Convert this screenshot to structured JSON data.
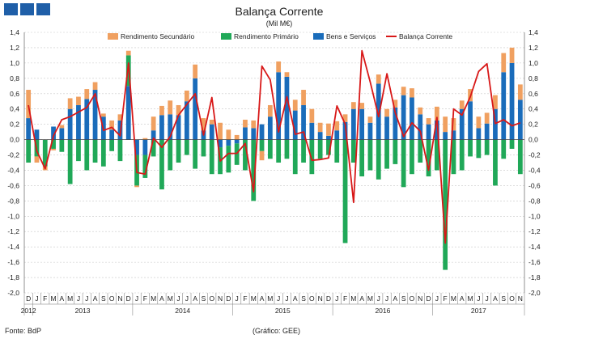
{
  "header_blocks": 3,
  "colors": {
    "header_block": "#1f5fa8",
    "rendimento_secundario": "#f0a060",
    "rendimento_primario": "#20a858",
    "bens_servicos": "#1a6cba",
    "balanca_corrente": "#d81818",
    "grid": "#c8c8c8",
    "axis": "#777777",
    "text": "#222222"
  },
  "chart_data": {
    "type": "bar",
    "title": "Balança Corrente",
    "subtitle": "(Mil M€)",
    "source": "Fonte: BdP",
    "credit": "(Gráfico: GEE)",
    "ylim": [
      -2.0,
      1.4
    ],
    "yticks": [
      "1,4",
      "1,2",
      "1,0",
      "0,8",
      "0,6",
      "0,4",
      "0,2",
      "0,0",
      "-0,2",
      "-0,4",
      "-0,6",
      "-0,8",
      "-1,0",
      "-1,2",
      "-1,4",
      "-1,6",
      "-1,8",
      "-2,0"
    ],
    "grid": true,
    "stacked": true,
    "legend_position": "top",
    "categories": [
      "D",
      "J",
      "F",
      "M",
      "A",
      "M",
      "J",
      "J",
      "A",
      "S",
      "O",
      "N",
      "D",
      "J",
      "F",
      "M",
      "A",
      "M",
      "J",
      "J",
      "A",
      "S",
      "O",
      "N",
      "D",
      "J",
      "F",
      "M",
      "A",
      "M",
      "J",
      "J",
      "A",
      "S",
      "O",
      "N",
      "D",
      "J",
      "F",
      "M",
      "A",
      "M",
      "J",
      "J",
      "A",
      "S",
      "O",
      "N",
      "D",
      "J",
      "F",
      "M",
      "A",
      "M",
      "J",
      "J",
      "A",
      "S",
      "O",
      "N"
    ],
    "years": [
      {
        "label": "2012",
        "from": 0,
        "to": 0
      },
      {
        "label": "2013",
        "from": 1,
        "to": 12
      },
      {
        "label": "2014",
        "from": 13,
        "to": 24
      },
      {
        "label": "2015",
        "from": 25,
        "to": 36
      },
      {
        "label": "2016",
        "from": 37,
        "to": 48
      },
      {
        "label": "2017",
        "from": 49,
        "to": 59
      }
    ],
    "series": [
      {
        "name": "Rendimento Secundário",
        "kind": "bar",
        "values": [
          0.37,
          -0.08,
          -0.05,
          -0.02,
          0.04,
          0.14,
          0.11,
          0.13,
          0.1,
          0.04,
          0.12,
          0.08,
          0.06,
          -0.02,
          0.02,
          0.18,
          0.12,
          0.18,
          0.13,
          0.14,
          0.18,
          0.16,
          0.06,
          0.22,
          0.13,
          0.06,
          0.1,
          0.1,
          -0.12,
          0.15,
          0.14,
          0.06,
          0.14,
          0.2,
          0.18,
          0.12,
          0.16,
          0.12,
          0.1,
          0.09,
          0.08,
          0.08,
          0.12,
          0.1,
          0.1,
          0.11,
          0.12,
          0.09,
          0.08,
          0.18,
          0.2,
          0.16,
          0.11,
          0.16,
          0.15,
          0.14,
          0.18,
          0.25,
          0.2,
          0.2
        ]
      },
      {
        "name": "Rendimento Primário",
        "kind": "bar",
        "values": [
          -0.3,
          -0.22,
          -0.35,
          -0.12,
          -0.16,
          -0.58,
          -0.28,
          -0.4,
          -0.3,
          -0.35,
          -0.15,
          -0.28,
          0.4,
          -0.4,
          -0.3,
          -0.22,
          -0.65,
          -0.4,
          -0.3,
          -0.2,
          -0.38,
          -0.22,
          -0.45,
          -0.35,
          -0.35,
          -0.28,
          -0.4,
          -0.8,
          -0.15,
          -0.25,
          -0.3,
          -0.25,
          -0.45,
          -0.3,
          -0.45,
          -0.25,
          -0.2,
          -0.3,
          -1.35,
          -0.3,
          -0.48,
          -0.4,
          -0.52,
          -0.38,
          -0.32,
          -0.62,
          -0.45,
          -0.3,
          -0.48,
          -0.4,
          -1.7,
          -0.45,
          -0.4,
          -0.22,
          -0.24,
          -0.2,
          -0.6,
          -0.25,
          -0.12,
          -0.45
        ]
      },
      {
        "name": "Bens e Serviços",
        "kind": "bar",
        "values": [
          0.28,
          0.13,
          0.0,
          0.17,
          0.15,
          0.4,
          0.45,
          0.53,
          0.65,
          0.3,
          0.13,
          0.25,
          0.7,
          -0.2,
          -0.2,
          0.12,
          0.32,
          0.33,
          0.32,
          0.5,
          0.8,
          0.12,
          0.2,
          -0.1,
          -0.08,
          -0.05,
          0.16,
          0.15,
          0.2,
          0.3,
          0.88,
          0.82,
          0.38,
          0.45,
          0.22,
          0.1,
          0.05,
          0.12,
          0.23,
          0.4,
          0.4,
          0.22,
          0.73,
          0.3,
          0.42,
          0.58,
          0.55,
          0.33,
          0.2,
          0.25,
          0.1,
          0.12,
          0.4,
          0.5,
          0.15,
          0.21,
          0.4,
          0.88,
          1.0,
          0.52
        ]
      },
      {
        "name": "Balança Corrente",
        "kind": "line",
        "values": [
          0.45,
          -0.15,
          -0.38,
          0.05,
          0.26,
          0.3,
          0.36,
          0.42,
          0.6,
          0.12,
          0.16,
          0.05,
          1.0,
          -0.43,
          -0.45,
          0.02,
          -0.1,
          0.04,
          0.32,
          0.46,
          0.6,
          0.06,
          0.55,
          -0.28,
          -0.18,
          -0.18,
          -0.05,
          -0.68,
          0.96,
          0.78,
          0.1,
          0.56,
          0.07,
          0.1,
          -0.27,
          -0.26,
          -0.24,
          0.44,
          0.2,
          -0.82,
          1.16,
          0.75,
          0.3,
          0.86,
          0.35,
          0.04,
          0.22,
          0.11,
          -0.4,
          0.29,
          -1.35,
          0.4,
          0.32,
          0.56,
          0.89,
          0.99,
          0.21,
          0.26,
          0.18,
          0.22
        ]
      }
    ]
  }
}
